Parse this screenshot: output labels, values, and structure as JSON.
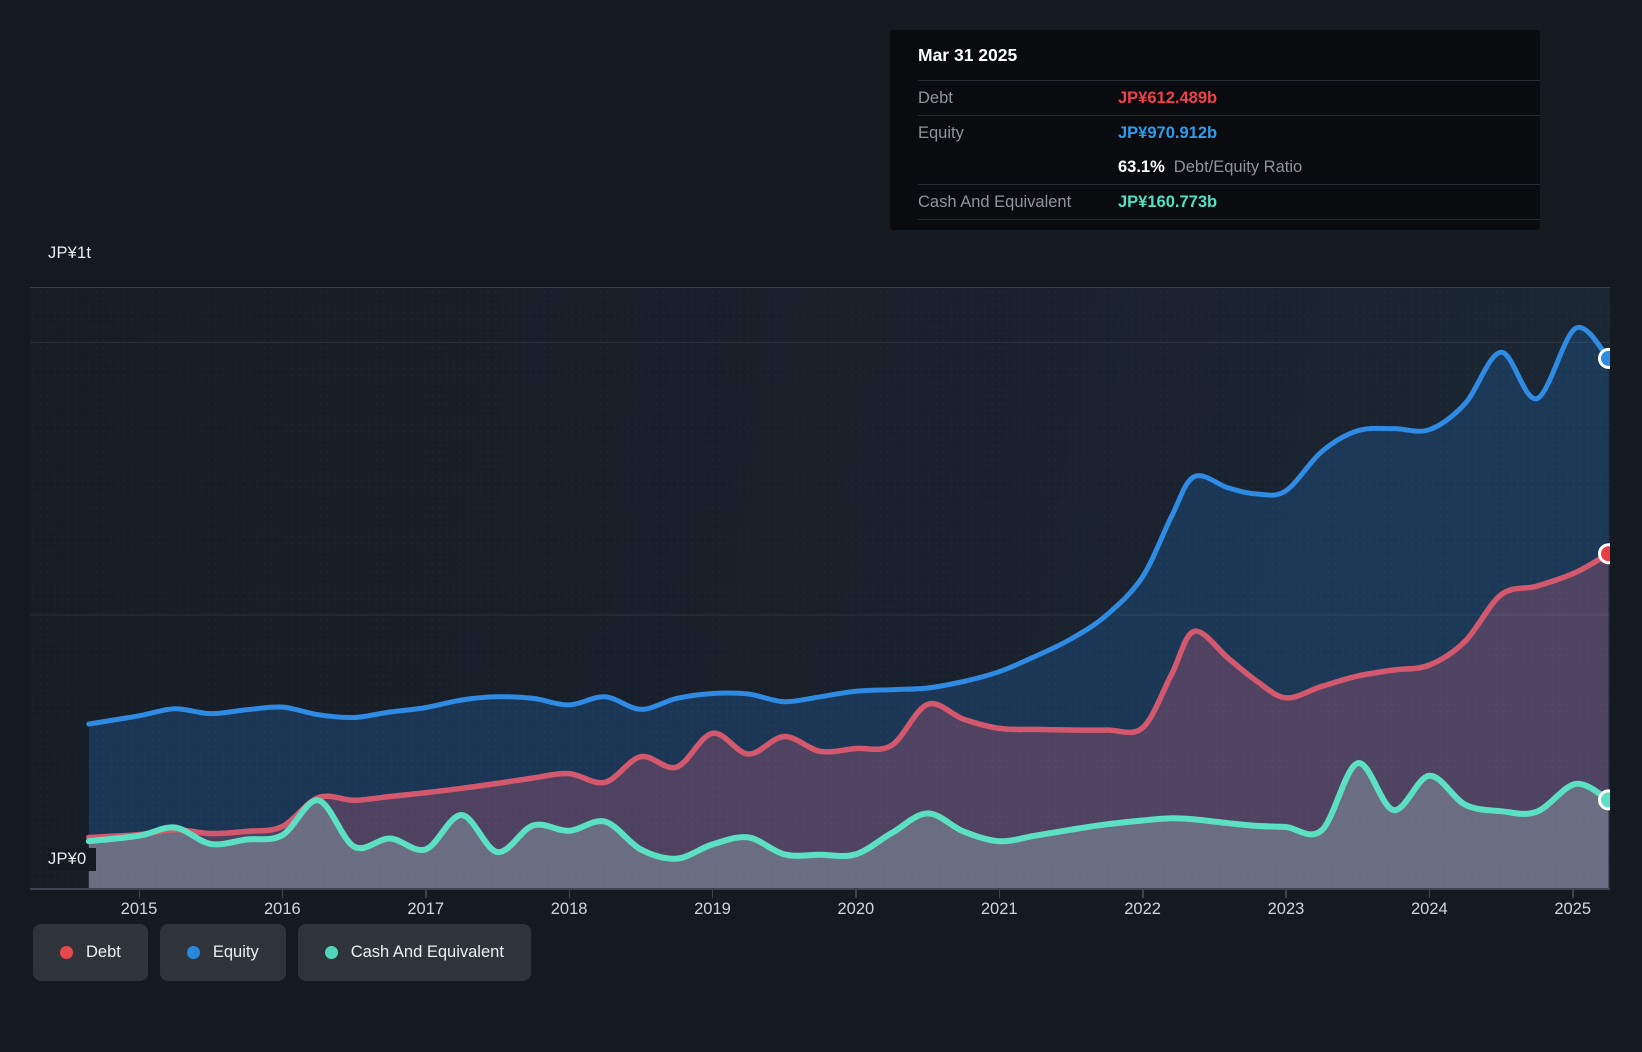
{
  "tooltip": {
    "date": "Mar 31 2025",
    "rows": [
      {
        "label": "Debt",
        "value": "JP¥612.489b",
        "color": "#f0414b"
      },
      {
        "label": "Equity",
        "value": "JP¥970.912b",
        "color": "#2e9ceb"
      },
      {
        "label": "Cash And Equivalent",
        "value": "JP¥160.773b",
        "color": "#50e2c4"
      }
    ],
    "ratio": {
      "value": "63.1%",
      "label": "Debt/Equity Ratio"
    }
  },
  "y_axis": {
    "top": "JP¥1t",
    "bottom": "JP¥0"
  },
  "x_axis": {
    "years": [
      "2015",
      "2016",
      "2017",
      "2018",
      "2019",
      "2020",
      "2021",
      "2022",
      "2023",
      "2024",
      "2025"
    ]
  },
  "legend": {
    "items": [
      {
        "label": "Debt",
        "color": "#e5484d"
      },
      {
        "label": "Equity",
        "color": "#2788e0"
      },
      {
        "label": "Cash And Equivalent",
        "color": "#4fd6ba"
      }
    ]
  },
  "chart_data": {
    "type": "area",
    "unit": "JP¥ billions",
    "x_unit": "decimal_year",
    "x_range": [
      2014.65,
      2025.25
    ],
    "ylim_b": [
      0,
      1100
    ],
    "gridlines_b": [
      0,
      500,
      1000
    ],
    "gridline_labels": [
      "JP¥0",
      "",
      "JP¥1t"
    ],
    "legend_position": "bottom-left",
    "x": [
      2014.65,
      2015.0,
      2015.25,
      2015.5,
      2015.75,
      2016.0,
      2016.25,
      2016.5,
      2016.75,
      2017.0,
      2017.25,
      2017.5,
      2017.75,
      2018.0,
      2018.25,
      2018.5,
      2018.75,
      2019.0,
      2019.25,
      2019.5,
      2019.75,
      2020.0,
      2020.25,
      2020.5,
      2020.75,
      2021.0,
      2021.25,
      2021.5,
      2021.75,
      2022.0,
      2022.2,
      2022.36,
      2022.6,
      2022.8,
      2023.0,
      2023.25,
      2023.5,
      2023.75,
      2024.0,
      2024.25,
      2024.5,
      2024.75,
      2025.02,
      2025.25
    ],
    "series": [
      {
        "name": "Equity",
        "color": "#2e8ae2",
        "fill": "rgba(28,62,98,0.78)",
        "marker_color": "#2e8ae2",
        "stroke_width": 5,
        "values": [
          300,
          315,
          328,
          319,
          326,
          331,
          317,
          312,
          322,
          330,
          344,
          350,
          347,
          335,
          350,
          327,
          347,
          356,
          355,
          341,
          350,
          360,
          363,
          366,
          378,
          396,
          424,
          456,
          500,
          570,
          680,
          754,
          733,
          722,
          728,
          800,
          838,
          842,
          840,
          888,
          982,
          897,
          1026,
          970.912
        ]
      },
      {
        "name": "Debt",
        "color": "#d4586d",
        "fill": "rgba(158,86,116,0.40)",
        "marker_color": "#ee3a43",
        "stroke_width": 5.5,
        "values": [
          92,
          97,
          106,
          99,
          103,
          112,
          165,
          160,
          167,
          174,
          182,
          191,
          201,
          209,
          193,
          240,
          221,
          283,
          245,
          277,
          250,
          255,
          261,
          336,
          309,
          292,
          290,
          289,
          289,
          293,
          390,
          470,
          420,
          378,
          348,
          369,
          388,
          399,
          408,
          452,
          537,
          553,
          578,
          612.489
        ]
      },
      {
        "name": "Cash And Equivalent",
        "color": "#5ce0c3",
        "fill": "rgba(173,208,208,0.30)",
        "marker_color": "#5ce0c3",
        "stroke_width": 6,
        "values": [
          85,
          95,
          110,
          80,
          88,
          96,
          160,
          75,
          90,
          70,
          133,
          65,
          114,
          104,
          121,
          70,
          53,
          79,
          92,
          61,
          60,
          61,
          100,
          136,
          103,
          85,
          95,
          106,
          116,
          123,
          127,
          125,
          118,
          113,
          111,
          105,
          228,
          142,
          205,
          152,
          140,
          139,
          190,
          160.773
        ]
      }
    ]
  }
}
